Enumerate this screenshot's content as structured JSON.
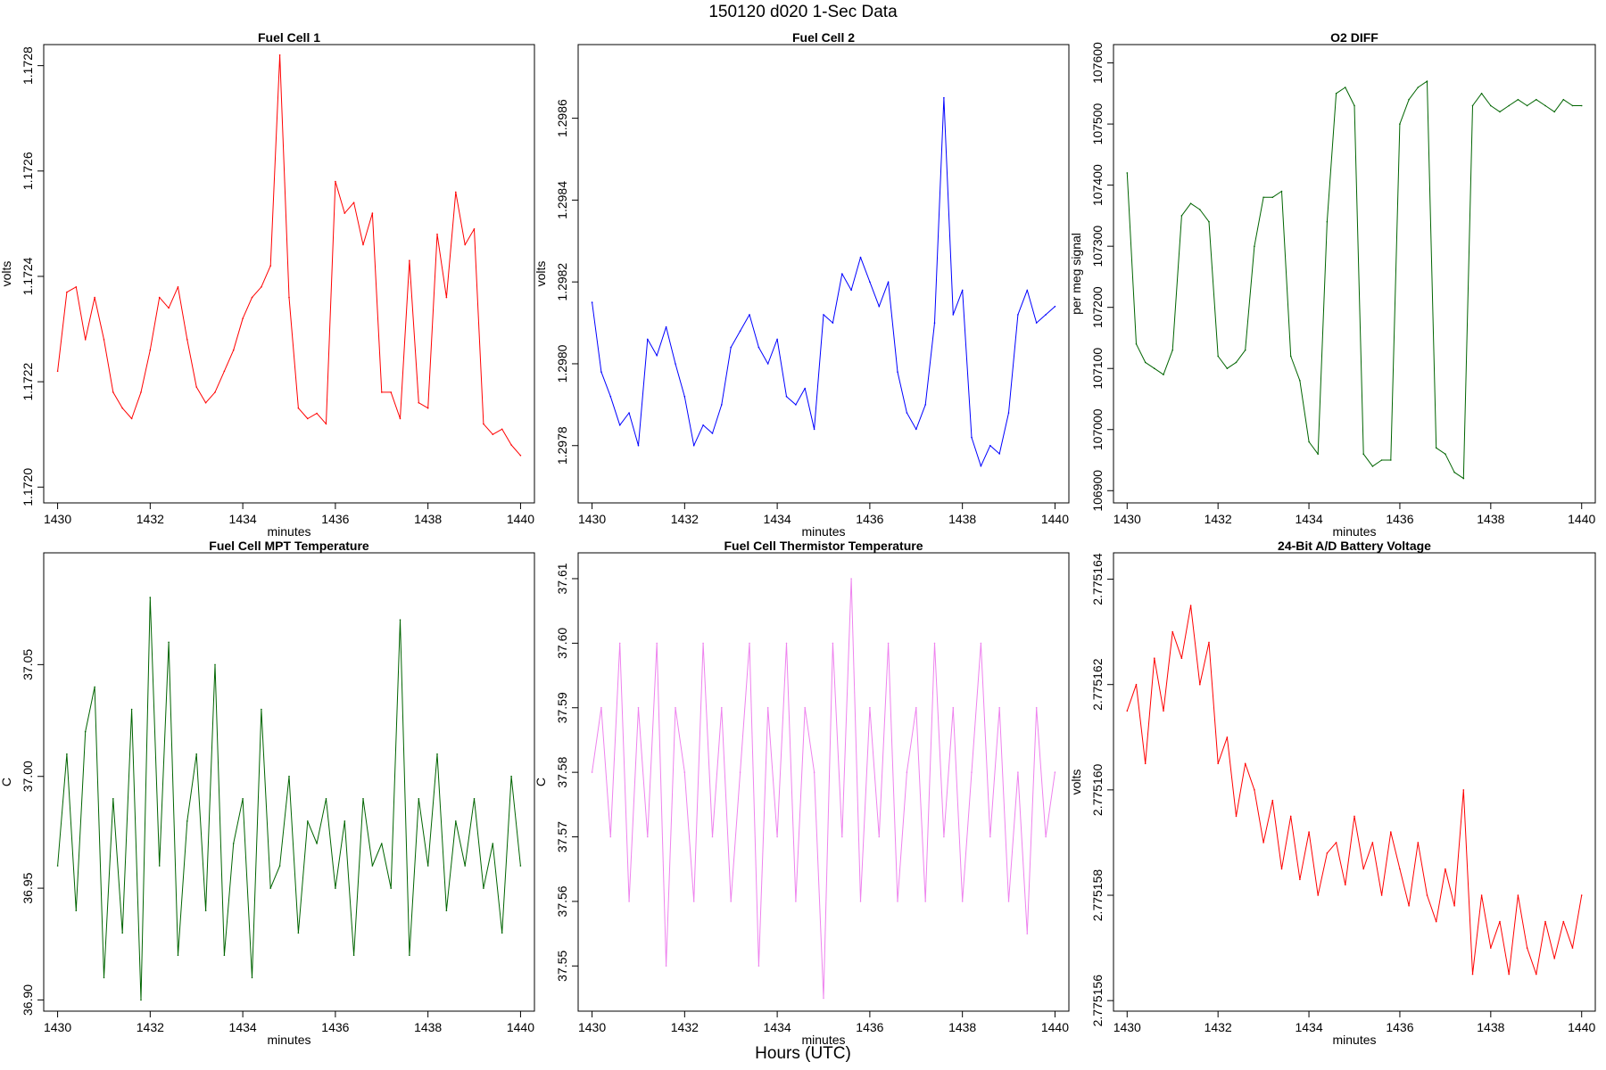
{
  "figure": {
    "title": "150120   d020   1-Sec Data",
    "bottom_label": "Hours (UTC)"
  },
  "chart_data": [
    {
      "type": "line",
      "title": "Fuel Cell 1",
      "xlabel": "minutes",
      "ylabel": "volts",
      "xlim": [
        1429.7,
        1440.3
      ],
      "ylim": [
        1.17197,
        1.17284
      ],
      "xticks": [
        1430,
        1432,
        1434,
        1436,
        1438,
        1440
      ],
      "yticks": [
        1.172,
        1.1722,
        1.1724,
        1.1726,
        1.1728
      ],
      "ytick_labels": [
        "1.1720",
        "1.1722",
        "1.1724",
        "1.1726",
        "1.1728"
      ],
      "color": "#ff0000",
      "x": [
        1430,
        1430.2,
        1430.4,
        1430.6,
        1430.8,
        1431,
        1431.2,
        1431.4,
        1431.6,
        1431.8,
        1432,
        1432.2,
        1432.4,
        1432.6,
        1432.8,
        1433,
        1433.2,
        1433.4,
        1433.6,
        1433.8,
        1434,
        1434.2,
        1434.4,
        1434.6,
        1434.8,
        1435,
        1435.2,
        1435.4,
        1435.6,
        1435.8,
        1436,
        1436.2,
        1436.4,
        1436.6,
        1436.8,
        1437,
        1437.2,
        1437.4,
        1437.6,
        1437.8,
        1438,
        1438.2,
        1438.4,
        1438.6,
        1438.8,
        1439,
        1439.2,
        1439.4,
        1439.6,
        1439.8,
        1440
      ],
      "values": [
        1.17222,
        1.17237,
        1.17238,
        1.17228,
        1.17236,
        1.17228,
        1.17218,
        1.17215,
        1.17213,
        1.17218,
        1.17226,
        1.17236,
        1.17234,
        1.17238,
        1.17228,
        1.17219,
        1.17216,
        1.17218,
        1.17222,
        1.17226,
        1.17232,
        1.17236,
        1.17238,
        1.17242,
        1.17282,
        1.17236,
        1.17215,
        1.17213,
        1.17214,
        1.17212,
        1.17258,
        1.17252,
        1.17254,
        1.17246,
        1.17252,
        1.17218,
        1.17218,
        1.17213,
        1.17243,
        1.17216,
        1.17215,
        1.17248,
        1.17236,
        1.17256,
        1.17246,
        1.17249,
        1.17212,
        1.1721,
        1.17211,
        1.17208,
        1.17206
      ]
    },
    {
      "type": "line",
      "title": "Fuel Cell 2",
      "xlabel": "minutes",
      "ylabel": "volts",
      "xlim": [
        1429.7,
        1440.3
      ],
      "ylim": [
        1.29766,
        1.29878
      ],
      "xticks": [
        1430,
        1432,
        1434,
        1436,
        1438,
        1440
      ],
      "yticks": [
        1.2978,
        1.298,
        1.2982,
        1.2984,
        1.2986
      ],
      "ytick_labels": [
        "1.2978",
        "1.2980",
        "1.2982",
        "1.2984",
        "1.2986"
      ],
      "color": "#0000ff",
      "x": [
        1430,
        1430.2,
        1430.4,
        1430.6,
        1430.8,
        1431,
        1431.2,
        1431.4,
        1431.6,
        1431.8,
        1432,
        1432.2,
        1432.4,
        1432.6,
        1432.8,
        1433,
        1433.2,
        1433.4,
        1433.6,
        1433.8,
        1434,
        1434.2,
        1434.4,
        1434.6,
        1434.8,
        1435,
        1435.2,
        1435.4,
        1435.6,
        1435.8,
        1436,
        1436.2,
        1436.4,
        1436.6,
        1436.8,
        1437,
        1437.2,
        1437.4,
        1437.6,
        1437.8,
        1438,
        1438.2,
        1438.4,
        1438.6,
        1438.8,
        1439,
        1439.2,
        1439.4,
        1439.6,
        1439.8,
        1440
      ],
      "values": [
        1.29815,
        1.29798,
        1.29792,
        1.29785,
        1.29788,
        1.2978,
        1.29806,
        1.29802,
        1.29809,
        1.298,
        1.29792,
        1.2978,
        1.29785,
        1.29783,
        1.2979,
        1.29804,
        1.29808,
        1.29812,
        1.29804,
        1.298,
        1.29806,
        1.29792,
        1.2979,
        1.29794,
        1.29784,
        1.29812,
        1.2981,
        1.29822,
        1.29818,
        1.29826,
        1.2982,
        1.29814,
        1.2982,
        1.29798,
        1.29788,
        1.29784,
        1.2979,
        1.2981,
        1.29865,
        1.29812,
        1.29818,
        1.29782,
        1.29775,
        1.2978,
        1.29778,
        1.29788,
        1.29812,
        1.29818,
        1.2981,
        1.29812,
        1.29814
      ]
    },
    {
      "type": "line",
      "title": "O2 DIFF",
      "xlabel": "minutes",
      "ylabel": "per meg signal",
      "xlim": [
        1429.7,
        1440.3
      ],
      "ylim": [
        106880,
        107630
      ],
      "xticks": [
        1430,
        1432,
        1434,
        1436,
        1438,
        1440
      ],
      "yticks": [
        106900,
        107000,
        107100,
        107200,
        107300,
        107400,
        107500,
        107600
      ],
      "ytick_labels": [
        "106900",
        "107000",
        "107100",
        "107200",
        "107300",
        "107400",
        "107500",
        "107600"
      ],
      "color": "#006400",
      "x": [
        1430,
        1430.2,
        1430.4,
        1430.6,
        1430.8,
        1431,
        1431.2,
        1431.4,
        1431.6,
        1431.8,
        1432,
        1432.2,
        1432.4,
        1432.6,
        1432.8,
        1433,
        1433.2,
        1433.4,
        1433.6,
        1433.8,
        1434,
        1434.2,
        1434.4,
        1434.6,
        1434.8,
        1435,
        1435.2,
        1435.4,
        1435.6,
        1435.8,
        1436,
        1436.2,
        1436.4,
        1436.6,
        1436.8,
        1437,
        1437.2,
        1437.4,
        1437.6,
        1437.8,
        1438,
        1438.2,
        1438.4,
        1438.6,
        1438.8,
        1439,
        1439.2,
        1439.4,
        1439.6,
        1439.8,
        1440
      ],
      "values": [
        107420,
        107140,
        107110,
        107100,
        107090,
        107130,
        107350,
        107370,
        107360,
        107340,
        107120,
        107100,
        107110,
        107130,
        107300,
        107380,
        107380,
        107390,
        107120,
        107080,
        106980,
        106960,
        107340,
        107550,
        107560,
        107530,
        106960,
        106940,
        106950,
        106950,
        107500,
        107540,
        107560,
        107570,
        106970,
        106960,
        106930,
        106920,
        107530,
        107550,
        107530,
        107520,
        107530,
        107540,
        107530,
        107540,
        107530,
        107520,
        107540,
        107530,
        107530
      ]
    },
    {
      "type": "line",
      "title": "Fuel Cell MPT Temperature",
      "xlabel": "minutes",
      "ylabel": "C",
      "xlim": [
        1429.7,
        1440.3
      ],
      "ylim": [
        36.895,
        37.1
      ],
      "xticks": [
        1430,
        1432,
        1434,
        1436,
        1438,
        1440
      ],
      "yticks": [
        36.9,
        36.95,
        37.0,
        37.05
      ],
      "ytick_labels": [
        "36.90",
        "36.95",
        "37.00",
        "37.05"
      ],
      "color": "#006400",
      "x": [
        1430,
        1430.2,
        1430.4,
        1430.6,
        1430.8,
        1431,
        1431.2,
        1431.4,
        1431.6,
        1431.8,
        1432,
        1432.2,
        1432.4,
        1432.6,
        1432.8,
        1433,
        1433.2,
        1433.4,
        1433.6,
        1433.8,
        1434,
        1434.2,
        1434.4,
        1434.6,
        1434.8,
        1435,
        1435.2,
        1435.4,
        1435.6,
        1435.8,
        1436,
        1436.2,
        1436.4,
        1436.6,
        1436.8,
        1437,
        1437.2,
        1437.4,
        1437.6,
        1437.8,
        1438,
        1438.2,
        1438.4,
        1438.6,
        1438.8,
        1439,
        1439.2,
        1439.4,
        1439.6,
        1439.8,
        1440
      ],
      "values": [
        36.96,
        37.01,
        36.94,
        37.02,
        37.04,
        36.91,
        36.99,
        36.93,
        37.03,
        36.9,
        37.08,
        36.96,
        37.06,
        36.92,
        36.98,
        37.01,
        36.94,
        37.05,
        36.92,
        36.97,
        36.99,
        36.91,
        37.03,
        36.95,
        36.96,
        37.0,
        36.93,
        36.98,
        36.97,
        36.99,
        36.95,
        36.98,
        36.92,
        36.99,
        36.96,
        36.97,
        36.95,
        37.07,
        36.92,
        36.99,
        36.96,
        37.01,
        36.94,
        36.98,
        36.96,
        36.99,
        36.95,
        36.97,
        36.93,
        37.0,
        36.96
      ]
    },
    {
      "type": "line",
      "title": "Fuel Cell Thermistor Temperature",
      "xlabel": "minutes",
      "ylabel": "C",
      "xlim": [
        1429.7,
        1440.3
      ],
      "ylim": [
        37.543,
        37.614
      ],
      "xticks": [
        1430,
        1432,
        1434,
        1436,
        1438,
        1440
      ],
      "yticks": [
        37.55,
        37.56,
        37.57,
        37.58,
        37.59,
        37.6,
        37.61
      ],
      "ytick_labels": [
        "37.55",
        "37.56",
        "37.57",
        "37.58",
        "37.59",
        "37.60",
        "37.61"
      ],
      "color": "#ee82ee",
      "x": [
        1430,
        1430.2,
        1430.4,
        1430.6,
        1430.8,
        1431,
        1431.2,
        1431.4,
        1431.6,
        1431.8,
        1432,
        1432.2,
        1432.4,
        1432.6,
        1432.8,
        1433,
        1433.2,
        1433.4,
        1433.6,
        1433.8,
        1434,
        1434.2,
        1434.4,
        1434.6,
        1434.8,
        1435,
        1435.2,
        1435.4,
        1435.6,
        1435.8,
        1436,
        1436.2,
        1436.4,
        1436.6,
        1436.8,
        1437,
        1437.2,
        1437.4,
        1437.6,
        1437.8,
        1438,
        1438.2,
        1438.4,
        1438.6,
        1438.8,
        1439,
        1439.2,
        1439.4,
        1439.6,
        1439.8,
        1440
      ],
      "values": [
        37.58,
        37.59,
        37.57,
        37.6,
        37.56,
        37.59,
        37.57,
        37.6,
        37.55,
        37.59,
        37.58,
        37.56,
        37.6,
        37.57,
        37.59,
        37.56,
        37.58,
        37.6,
        37.55,
        37.59,
        37.57,
        37.6,
        37.56,
        37.59,
        37.58,
        37.545,
        37.6,
        37.57,
        37.61,
        37.56,
        37.59,
        37.57,
        37.6,
        37.56,
        37.58,
        37.59,
        37.56,
        37.6,
        37.57,
        37.59,
        37.56,
        37.58,
        37.6,
        37.57,
        37.59,
        37.56,
        37.58,
        37.555,
        37.59,
        37.57,
        37.58
      ]
    },
    {
      "type": "line",
      "title": "24-Bit A/D Battery Voltage",
      "xlabel": "minutes",
      "ylabel": "volts",
      "xlim": [
        1429.7,
        1440.3
      ],
      "ylim": [
        2.7751558,
        2.7751645
      ],
      "xticks": [
        1430,
        1432,
        1434,
        1436,
        1438,
        1440
      ],
      "yticks": [
        2.775156,
        2.775158,
        2.77516,
        2.775162,
        2.775164
      ],
      "ytick_labels": [
        "2.775156",
        "2.775158",
        "2.775160",
        "2.775162",
        "2.775164"
      ],
      "color": "#ff0000",
      "x": [
        1430,
        1430.2,
        1430.4,
        1430.6,
        1430.8,
        1431,
        1431.2,
        1431.4,
        1431.6,
        1431.8,
        1432,
        1432.2,
        1432.4,
        1432.6,
        1432.8,
        1433,
        1433.2,
        1433.4,
        1433.6,
        1433.8,
        1434,
        1434.2,
        1434.4,
        1434.6,
        1434.8,
        1435,
        1435.2,
        1435.4,
        1435.6,
        1435.8,
        1436,
        1436.2,
        1436.4,
        1436.6,
        1436.8,
        1437,
        1437.2,
        1437.4,
        1437.6,
        1437.8,
        1438,
        1438.2,
        1438.4,
        1438.6,
        1438.8,
        1439,
        1439.2,
        1439.4,
        1439.6,
        1439.8,
        1440
      ],
      "values": [
        2.7751615,
        2.775162,
        2.7751605,
        2.7751625,
        2.7751615,
        2.775163,
        2.7751625,
        2.7751635,
        2.775162,
        2.7751628,
        2.7751605,
        2.775161,
        2.7751595,
        2.7751605,
        2.77516,
        2.775159,
        2.7751598,
        2.7751585,
        2.7751595,
        2.7751583,
        2.7751592,
        2.775158,
        2.7751588,
        2.775159,
        2.7751582,
        2.7751595,
        2.7751585,
        2.775159,
        2.775158,
        2.7751592,
        2.7751585,
        2.7751578,
        2.775159,
        2.775158,
        2.7751575,
        2.7751585,
        2.7751578,
        2.77516,
        2.7751565,
        2.775158,
        2.775157,
        2.7751575,
        2.7751565,
        2.775158,
        2.775157,
        2.7751565,
        2.7751575,
        2.7751568,
        2.7751575,
        2.775157,
        2.775158
      ]
    }
  ]
}
